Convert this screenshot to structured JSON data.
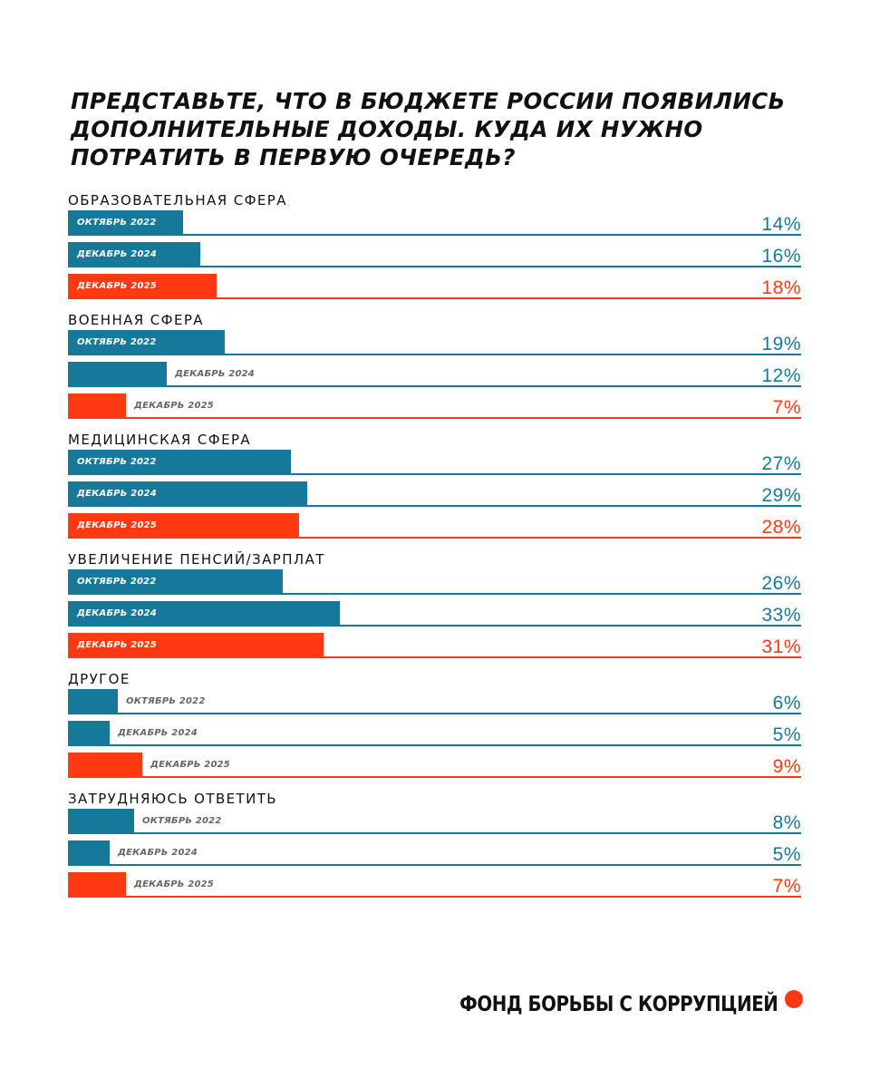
{
  "colors": {
    "blue": "#16789b",
    "red": "#ff3a12",
    "text": "#111111",
    "muted": "#666666"
  },
  "footer": {
    "org_name": "ФОНД БОРЬБЫ С КОРРУПЦИЕЙ"
  },
  "chart_data": {
    "type": "bar",
    "orientation": "horizontal",
    "title": "ПРЕДСТАВЬТЕ, ЧТО В БЮДЖЕТЕ РОССИИ ПОЯВИЛИСЬ ДОПОЛНИТЕЛЬНЫЕ ДОХОДЫ. КУДА ИХ НУЖНО ПОТРАТИТЬ В ПЕРВУЮ ОЧЕРЕДЬ?",
    "xlim": [
      0,
      100
    ],
    "unit": "%",
    "categories": [
      "ОБРАЗОВАТЕЛЬНАЯ СФЕРА",
      "ВОЕННАЯ СФЕРА",
      "МЕДИЦИНСКАЯ СФЕРА",
      "УВЕЛИЧЕНИЕ ПЕНСИЙ/ЗАРПЛАТ",
      "ДРУГОЕ",
      "ЗАТРУДНЯЮСЬ ОТВЕТИТЬ"
    ],
    "series": [
      {
        "name": "ОКТЯБРЬ 2022",
        "color": "#16789b",
        "values": [
          14,
          19,
          27,
          26,
          6,
          8
        ],
        "labels": [
          "14%",
          "19%",
          "27%",
          "26%",
          "6%",
          "8%"
        ]
      },
      {
        "name": "ДЕКАБРЬ 2024",
        "color": "#16789b",
        "values": [
          16,
          12,
          29,
          33,
          5,
          5
        ],
        "labels": [
          "16%",
          "12%",
          "29%",
          "33%",
          "5%",
          "5%"
        ]
      },
      {
        "name": "ДЕКАБРЬ 2025",
        "color": "#ff3a12",
        "values": [
          18,
          7,
          28,
          31,
          9,
          7
        ],
        "labels": [
          "18%",
          "7%",
          "28%",
          "31%",
          "9%",
          "7%"
        ]
      }
    ]
  }
}
